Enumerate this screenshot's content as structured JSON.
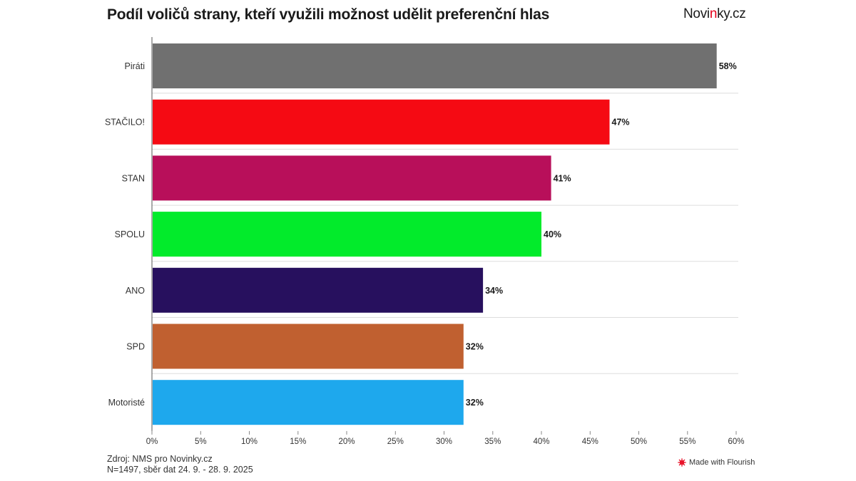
{
  "header": {
    "title": "Podíl voličů strany, kteří využili možnost udělit preferenční hlas",
    "logo_pre": "Novi",
    "logo_accent": "n",
    "logo_post": "ky.cz"
  },
  "chart_data": {
    "type": "bar",
    "orientation": "horizontal",
    "title": "Podíl voličů strany, kteří využili možnost udělit preferenční hlas",
    "categories": [
      "Piráti",
      "STAČILO!",
      "STAN",
      "SPOLU",
      "ANO",
      "SPD",
      "Motoristé"
    ],
    "values": [
      58,
      47,
      41,
      40,
      34,
      32,
      32
    ],
    "value_labels": [
      "58%",
      "47%",
      "41%",
      "40%",
      "34%",
      "32%",
      "32%"
    ],
    "colors": [
      "#707070",
      "#f50a13",
      "#b80f5a",
      "#02eb2b",
      "#27105e",
      "#c06030",
      "#1ea8ed"
    ],
    "xlim": [
      0,
      60
    ],
    "xticks": [
      0,
      5,
      10,
      15,
      20,
      25,
      30,
      35,
      40,
      45,
      50,
      55,
      60
    ],
    "xtick_labels": [
      "0%",
      "5%",
      "10%",
      "15%",
      "20%",
      "25%",
      "30%",
      "35%",
      "40%",
      "45%",
      "50%",
      "55%",
      "60%"
    ],
    "grid": "horizontal separators between bars",
    "legend": "none"
  },
  "footer": {
    "source": "Zdroj: NMS pro Novinky.cz",
    "sample": "N=1497, sběr dat 24. 9. - 28. 9. 2025",
    "credit": "Made with Flourish"
  }
}
